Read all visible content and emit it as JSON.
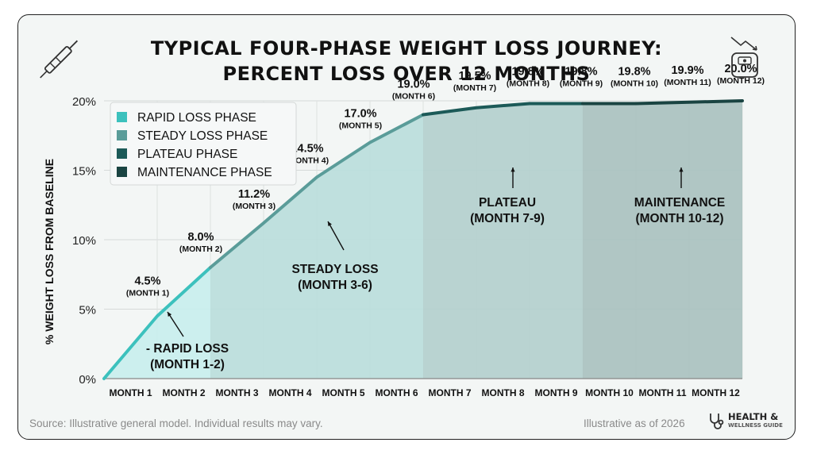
{
  "title_line1": "TYPICAL FOUR-PHASE WEIGHT LOSS JOURNEY:",
  "title_line2": "PERCENT LOSS OVER 12 MONTHS",
  "footer": {
    "source": "Source: Illustrative general model. Individual results may vary.",
    "as_of": "Illustrative as of 2026",
    "brand_line1": "HEALTH &",
    "brand_line2": "WELLNESS GUIDE"
  },
  "icons": [
    "syringe-pen-icon",
    "scale-trend-down-icon",
    "stethoscope-icon"
  ],
  "colors": {
    "line_rapid": "#3cc1bd",
    "line_steady": "#5a9c99",
    "line_plateau": "#1c5a58",
    "line_maintenance": "#1a4442",
    "fill_rapid": "#c8eeed",
    "fill_steady": "#b9dedc",
    "fill_plateau": "#b3cfcd",
    "fill_maintenance": "#a8c1bf"
  },
  "chart_data": {
    "type": "line",
    "title": "TYPICAL FOUR-PHASE WEIGHT LOSS JOURNEY: PERCENT LOSS OVER 12 MONTHS",
    "xlabel": "",
    "ylabel": "% WEIGHT LOSS FROM BASELINE",
    "ylim": [
      0,
      20
    ],
    "y_ticks": [
      "0%",
      "5%",
      "10%",
      "15%",
      "20%"
    ],
    "categories": [
      "MONTH 1",
      "MONTH 2",
      "MONTH 3",
      "MONTH 4",
      "MONTH 5",
      "MONTH 6",
      "MONTH 7",
      "MONTH 8",
      "MONTH 9",
      "MONTH 10",
      "MONTH 11",
      "MONTH 12"
    ],
    "series": [
      {
        "name": "",
        "values": [
          4.5,
          8.0,
          11.2,
          14.5,
          17.0,
          19.0,
          19.5,
          19.8,
          19.8,
          19.8,
          19.9,
          20.0
        ]
      }
    ],
    "data_labels": [
      {
        "value": "4.5%",
        "month": "(MONTH 1)"
      },
      {
        "value": "8.0%",
        "month": "(MONTH 2)"
      },
      {
        "value": "11.2%",
        "month": "(MONTH 3)"
      },
      {
        "value": "14.5%",
        "month": "(MONTH 4)"
      },
      {
        "value": "17.0%",
        "month": "(MONTH 5)"
      },
      {
        "value": "19.0%",
        "month": "(MONTH 6)"
      },
      {
        "value": "19.5%",
        "month": "(MONTH 7)"
      },
      {
        "value": "19.8%",
        "month": "(MONTH 8)"
      },
      {
        "value": "19.8%",
        "month": "(MONTH 9)"
      },
      {
        "value": "19.8%",
        "month": "(MONTH 10)"
      },
      {
        "value": "19.9%",
        "month": "(MONTH 11)"
      },
      {
        "value": "20.0%",
        "month": "(MONTH 12)"
      }
    ],
    "legend": [
      {
        "label": "RAPID LOSS PHASE",
        "color": "#3cc1bd"
      },
      {
        "label": "STEADY LOSS PHASE",
        "color": "#5a9c99"
      },
      {
        "label": "PLATEAU PHASE",
        "color": "#1c5a58"
      },
      {
        "label": "MAINTENANCE PHASE",
        "color": "#1a4442"
      }
    ],
    "legend_position": "top-left",
    "grid": true,
    "annotations": [
      {
        "line1": "- RAPID LOSS",
        "line2": "(MONTH 1-2)"
      },
      {
        "line1": "STEADY LOSS",
        "line2": "(MONTH 3-6)"
      },
      {
        "line1": "PLATEAU",
        "line2": "(MONTH 7-9)"
      },
      {
        "line1": "MAINTENANCE",
        "line2": "(MONTH 10-12)"
      }
    ]
  }
}
